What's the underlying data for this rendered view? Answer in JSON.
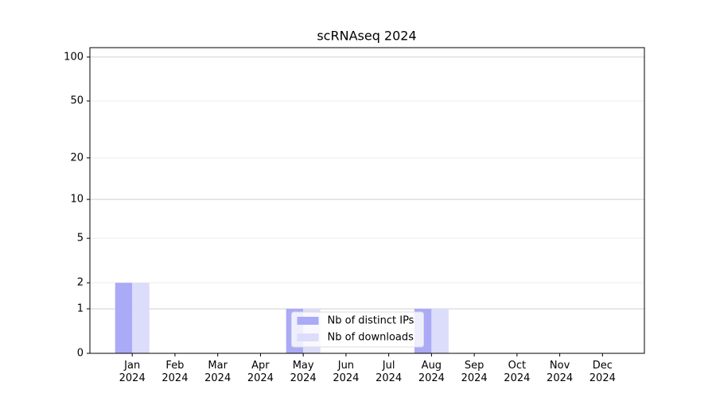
{
  "chart_data": {
    "type": "bar",
    "title": "scRNAseq 2024",
    "categories": [
      "Jan\n2024",
      "Feb\n2024",
      "Mar\n2024",
      "Apr\n2024",
      "May\n2024",
      "Jun\n2024",
      "Jul\n2024",
      "Aug\n2024",
      "Sep\n2024",
      "Oct\n2024",
      "Nov\n2024",
      "Dec\n2024"
    ],
    "series": [
      {
        "name": "Nb of distinct IPs",
        "color": "#aaaaf7",
        "values": [
          2,
          0,
          0,
          0,
          1,
          0,
          0,
          1,
          0,
          0,
          0,
          0
        ]
      },
      {
        "name": "Nb of downloads",
        "color": "#dcdcfb",
        "values": [
          2,
          0,
          0,
          0,
          1,
          0,
          0,
          1,
          0,
          0,
          0,
          0
        ]
      }
    ],
    "yscale": "log1p",
    "ylim": [
      0,
      116
    ],
    "yticks": [
      0,
      1,
      2,
      5,
      10,
      20,
      50,
      100
    ],
    "grid": true,
    "legend": "lower center"
  }
}
